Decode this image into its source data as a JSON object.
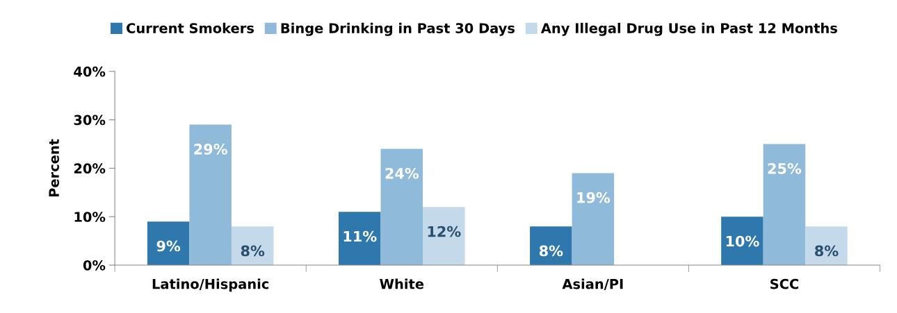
{
  "chart_data": {
    "type": "bar",
    "categories": [
      "Latino/Hispanic",
      "White",
      "Asian/PI",
      "SCC"
    ],
    "series": [
      {
        "name": "Current Smokers",
        "color": "#2e78ad",
        "values": [
          9,
          11,
          8,
          10
        ],
        "value_labels": [
          "9%",
          "11%",
          "8%",
          "10%"
        ]
      },
      {
        "name": "Binge Drinking in Past 30 Days",
        "color": "#90bad9",
        "values": [
          29,
          24,
          19,
          25
        ],
        "value_labels": [
          "29%",
          "24%",
          "19%",
          "25%"
        ]
      },
      {
        "name": "Any Illegal Drug Use in Past 12 Months",
        "color": "#c4d9ea",
        "values": [
          8,
          12,
          null,
          8
        ],
        "value_labels": [
          "8%",
          "12%",
          null,
          "8%"
        ]
      }
    ],
    "ylabel": "Percent",
    "ylim": [
      0,
      40
    ],
    "yticks": [
      {
        "value": 0,
        "label": "0%"
      },
      {
        "value": 10,
        "label": "10%"
      },
      {
        "value": 20,
        "label": "20%"
      },
      {
        "value": 30,
        "label": "30%"
      },
      {
        "value": 40,
        "label": "40%"
      }
    ],
    "legend": "top",
    "grid": false
  }
}
